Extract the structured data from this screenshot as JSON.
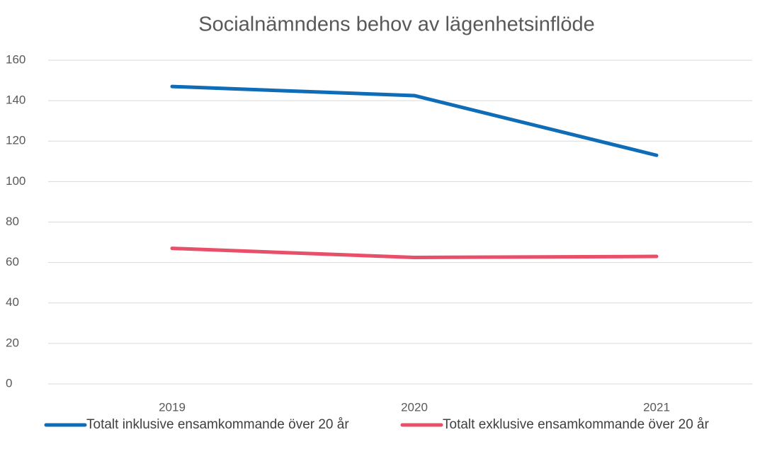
{
  "chart_data": {
    "type": "line",
    "title": "Socialnämndens behov av lägenhetsinflöde",
    "categories": [
      "2019",
      "2020",
      "2021"
    ],
    "series": [
      {
        "name": "Totalt inklusive ensamkommande över 20 år",
        "color": "#0f6cb6",
        "values": [
          147,
          142.5,
          113
        ]
      },
      {
        "name": "Totalt exklusive ensamkommande över 20 år",
        "color": "#e8506a",
        "values": [
          67,
          62.5,
          63
        ]
      }
    ],
    "ylim": [
      0,
      160
    ],
    "yticks": [
      0,
      20,
      40,
      60,
      80,
      100,
      120,
      140,
      160
    ],
    "grid": true,
    "legend": "bottom"
  }
}
